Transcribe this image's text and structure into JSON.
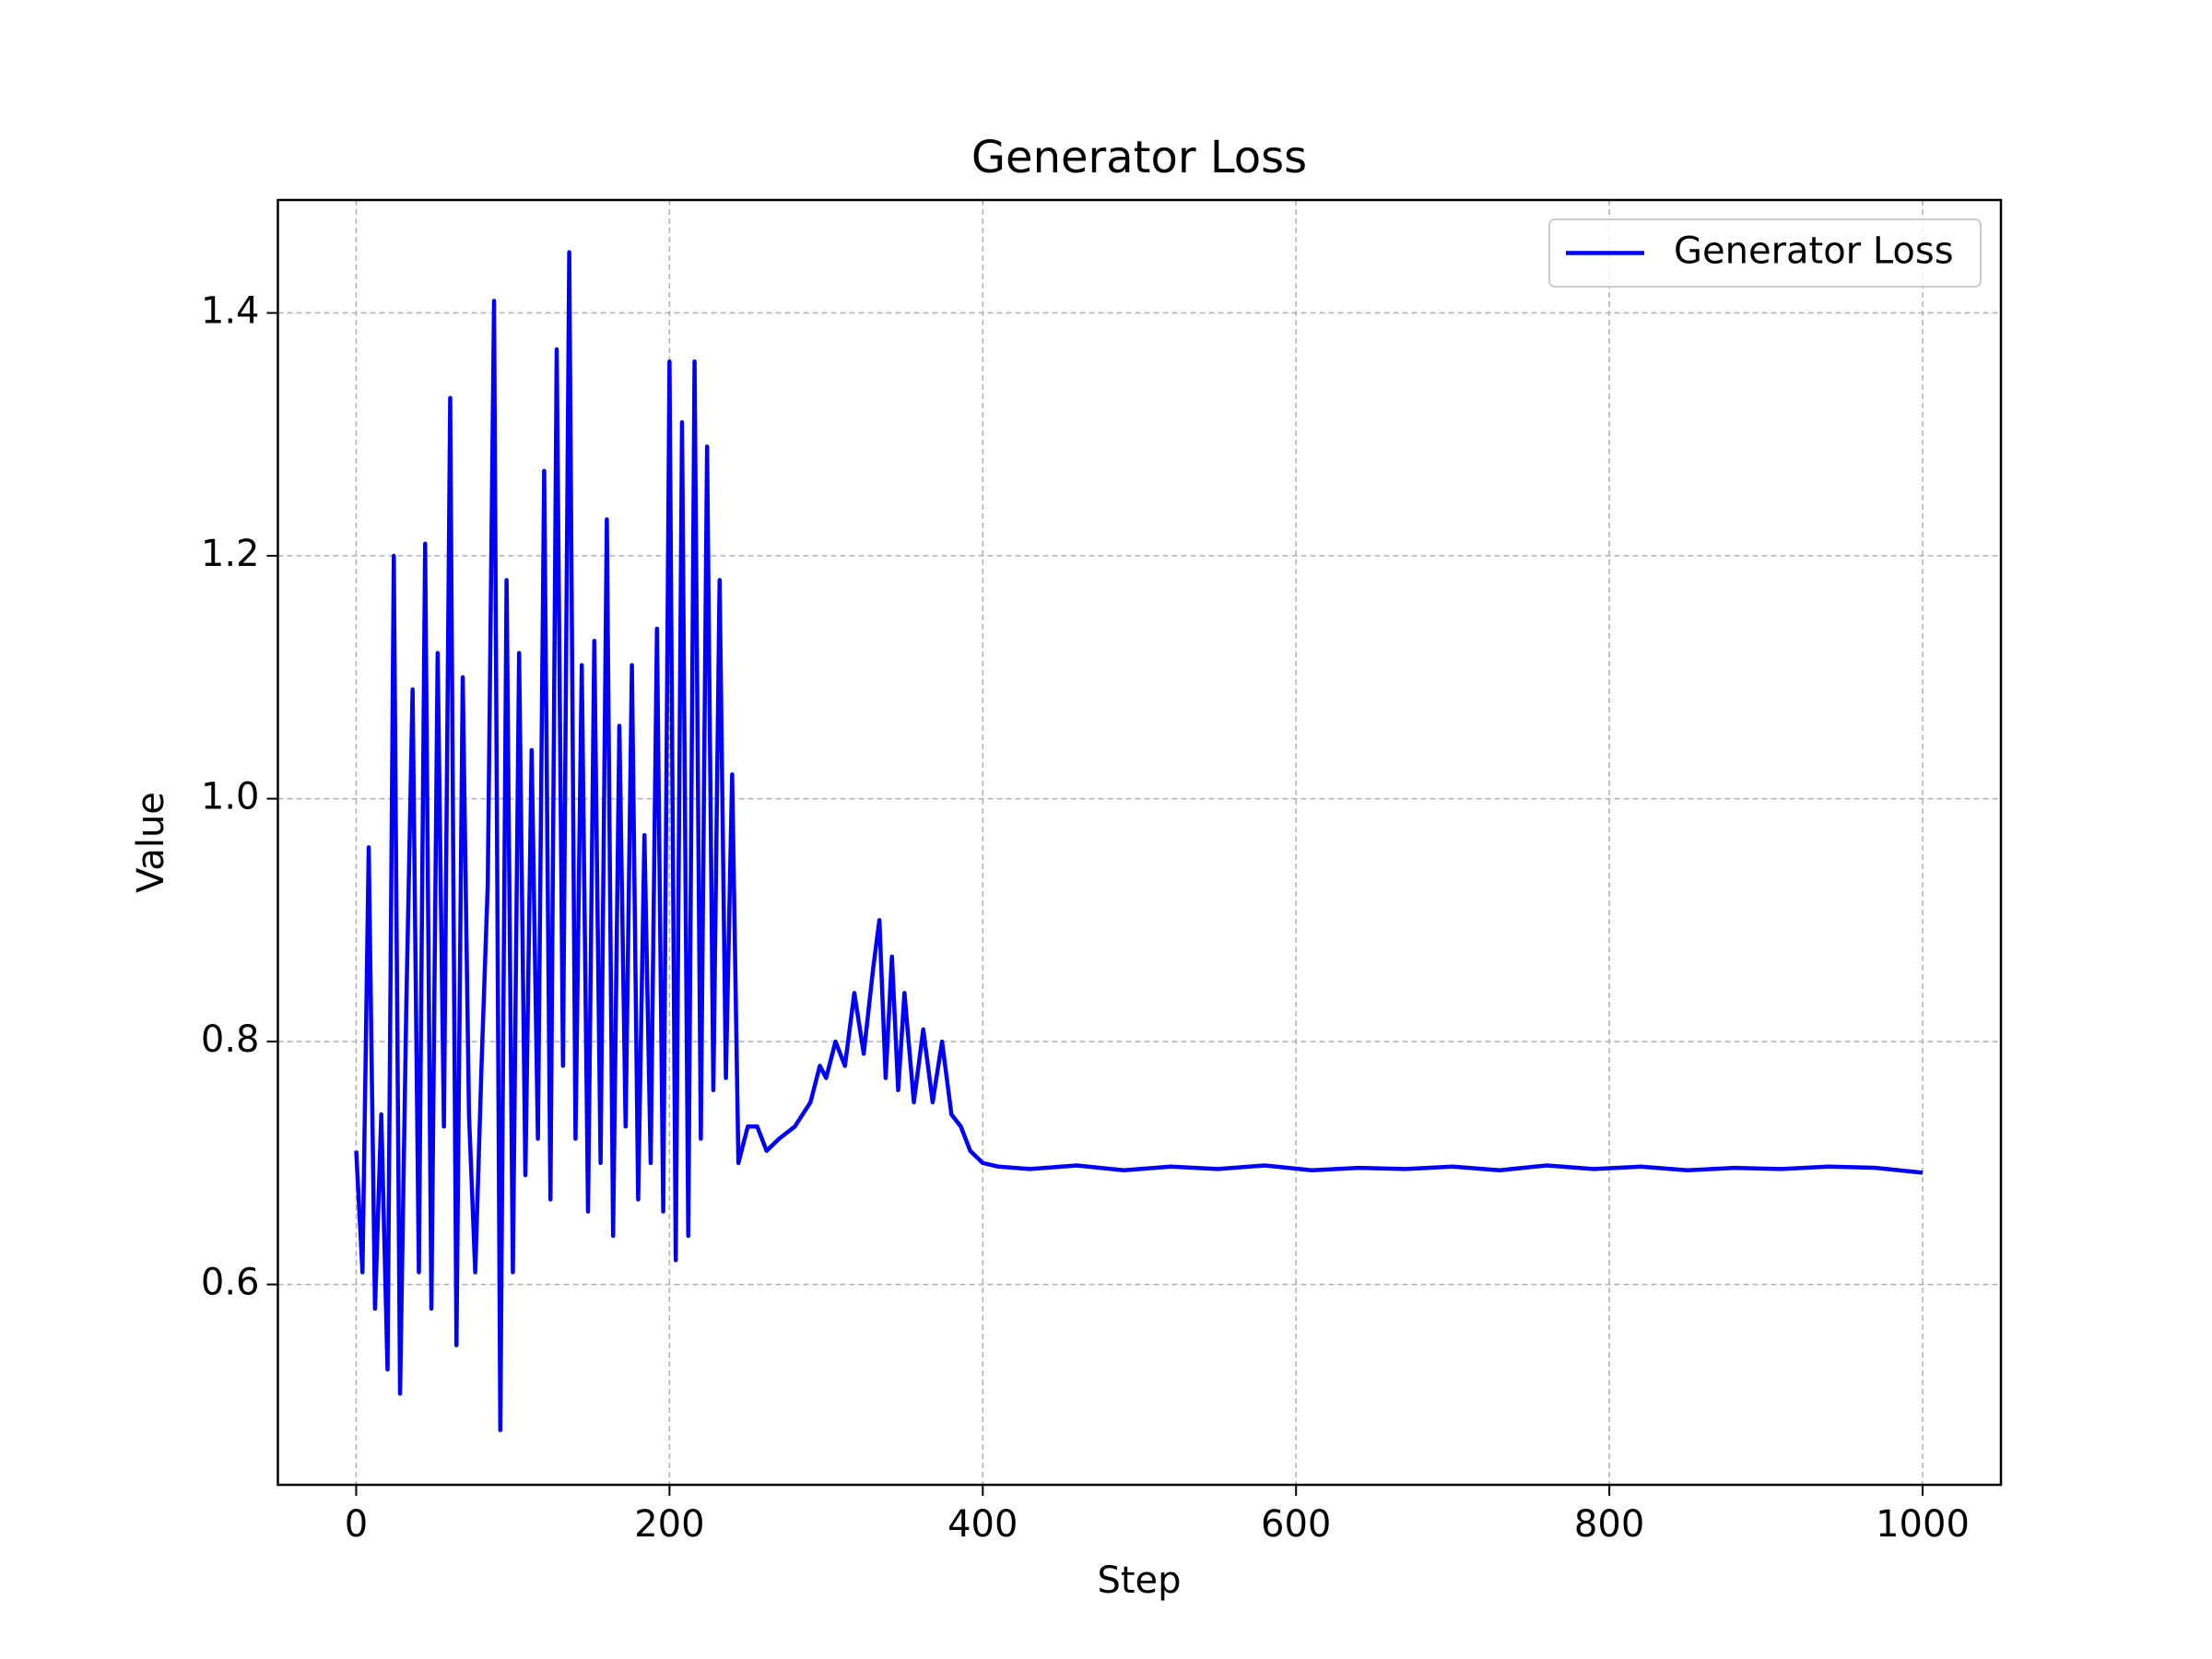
{
  "chart_data": {
    "type": "line",
    "title": "Generator Loss",
    "x_label": "Step",
    "y_label": "Value",
    "x": [
      0,
      4,
      8,
      12,
      16,
      20,
      24,
      28,
      32,
      36,
      40,
      44,
      48,
      52,
      56,
      60,
      64,
      68,
      72,
      76,
      80,
      84,
      88,
      92,
      96,
      100,
      104,
      108,
      112,
      116,
      120,
      124,
      128,
      132,
      136,
      140,
      144,
      148,
      152,
      156,
      160,
      164,
      168,
      172,
      176,
      180,
      184,
      188,
      192,
      196,
      200,
      204,
      208,
      212,
      216,
      220,
      224,
      228,
      232,
      236,
      240,
      244,
      250,
      256,
      262,
      270,
      280,
      290,
      296,
      300,
      306,
      312,
      318,
      324,
      330,
      334,
      338,
      342,
      346,
      350,
      356,
      362,
      368,
      374,
      380,
      386,
      392,
      400,
      410,
      430,
      460,
      490,
      520,
      550,
      580,
      610,
      640,
      670,
      700,
      730,
      760,
      790,
      820,
      850,
      880,
      910,
      940,
      970,
      1000
    ],
    "series": [
      {
        "name": "Generator Loss",
        "color": "#0000ff",
        "values": [
          0.71,
          0.61,
          0.96,
          0.58,
          0.74,
          0.53,
          1.2,
          0.51,
          0.83,
          1.09,
          0.61,
          1.21,
          0.58,
          1.12,
          0.73,
          1.33,
          0.55,
          1.1,
          0.74,
          0.61,
          0.78,
          0.93,
          1.41,
          0.48,
          1.18,
          0.61,
          1.12,
          0.69,
          1.04,
          0.72,
          1.27,
          0.67,
          1.37,
          0.78,
          1.45,
          0.72,
          1.11,
          0.66,
          1.13,
          0.7,
          1.23,
          0.64,
          1.06,
          0.73,
          1.11,
          0.67,
          0.97,
          0.7,
          1.14,
          0.66,
          1.36,
          0.62,
          1.31,
          0.64,
          1.36,
          0.72,
          1.29,
          0.76,
          1.18,
          0.77,
          1.02,
          0.7,
          0.73,
          0.73,
          0.71,
          0.72,
          0.73,
          0.75,
          0.78,
          0.77,
          0.8,
          0.78,
          0.84,
          0.79,
          0.86,
          0.9,
          0.77,
          0.87,
          0.76,
          0.84,
          0.75,
          0.81,
          0.75,
          0.8,
          0.74,
          0.73,
          0.71,
          0.7,
          0.697,
          0.695,
          0.698,
          0.694,
          0.697,
          0.695,
          0.698,
          0.694,
          0.696,
          0.695,
          0.697,
          0.694,
          0.698,
          0.695,
          0.697,
          0.694,
          0.696,
          0.695,
          0.697,
          0.696,
          0.692
        ]
      }
    ],
    "xlim": [
      -50,
      1050
    ],
    "ylim": [
      0.435,
      1.493
    ],
    "xticks": [
      0,
      200,
      400,
      600,
      800,
      1000
    ],
    "yticks": [
      {
        "value": 0.6,
        "label": "0.6"
      },
      {
        "value": 0.8,
        "label": "0.8"
      },
      {
        "value": 1.0,
        "label": "1.0"
      },
      {
        "value": 1.2,
        "label": "1.2"
      },
      {
        "value": 1.4,
        "label": "1.4"
      }
    ],
    "grid": true,
    "legend": "upper right"
  }
}
